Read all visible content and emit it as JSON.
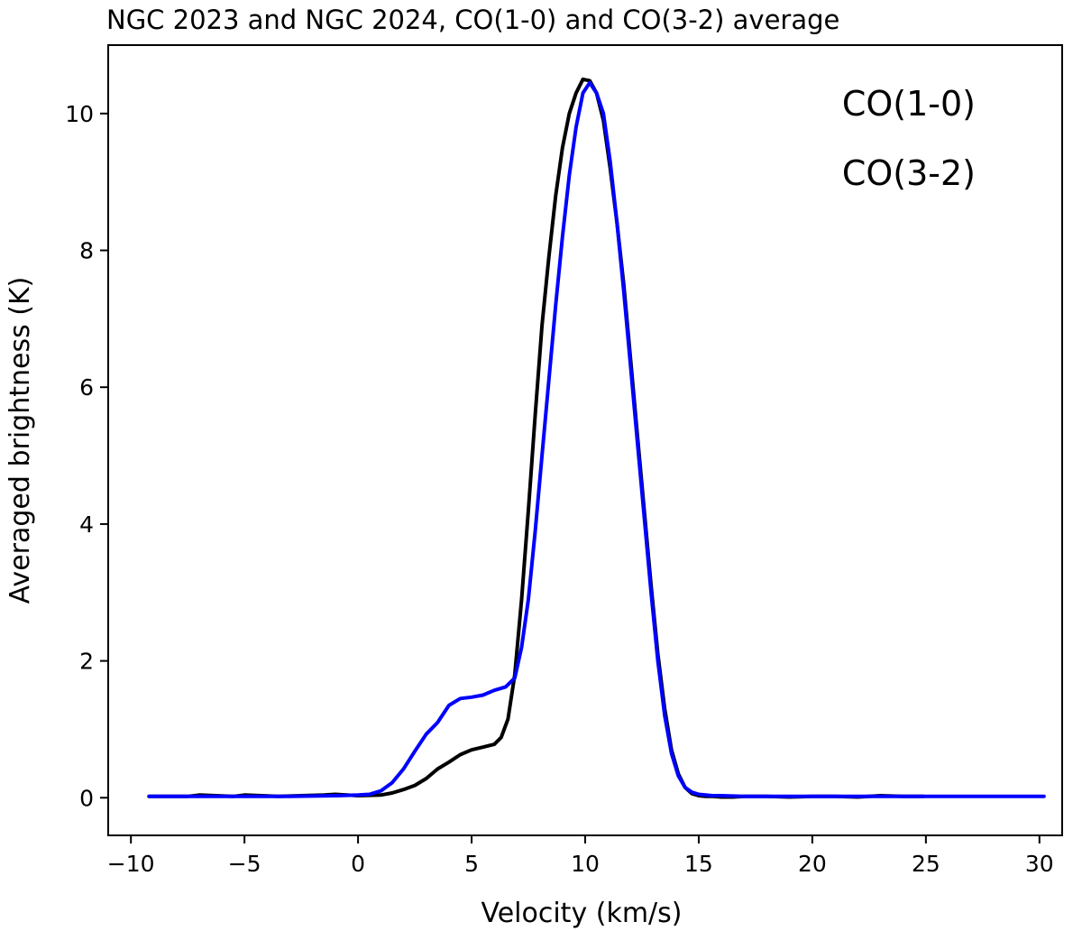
{
  "chart_data": {
    "type": "line",
    "title": "NGC 2023 and NGC 2024, CO(1-0) and CO(3-2) average",
    "xlabel": "Velocity (km/s)",
    "ylabel": "Averaged brightness (K)",
    "xlim": [
      -11,
      31
    ],
    "ylim": [
      -0.55,
      11.0
    ],
    "xticks": [
      -10,
      -5,
      0,
      5,
      10,
      15,
      20,
      25,
      30
    ],
    "xtick_labels": [
      "−10",
      "−5",
      "0",
      "5",
      "10",
      "15",
      "20",
      "25",
      "30"
    ],
    "yticks": [
      0,
      2,
      4,
      6,
      8,
      10
    ],
    "ytick_labels": [
      "0",
      "2",
      "4",
      "6",
      "8",
      "10"
    ],
    "grid": false,
    "legend_position": "top-right",
    "series": [
      {
        "name": "CO(3-2)",
        "color": "#000000",
        "x": [
          -9.2,
          -7.5,
          -7.0,
          -5.5,
          -5.0,
          -3.5,
          -2.5,
          -1.5,
          -1.0,
          0.0,
          1.0,
          1.5,
          2.0,
          2.5,
          3.0,
          3.5,
          4.0,
          4.5,
          5.0,
          5.5,
          6.0,
          6.3,
          6.6,
          6.9,
          7.2,
          7.5,
          7.8,
          8.1,
          8.4,
          8.7,
          9.0,
          9.3,
          9.6,
          9.9,
          10.2,
          10.5,
          10.8,
          11.1,
          11.4,
          11.7,
          12.0,
          12.3,
          12.6,
          12.9,
          13.2,
          13.5,
          13.8,
          14.1,
          14.4,
          14.7,
          15.0,
          15.3,
          15.6,
          16.0,
          16.5,
          17.0,
          18.0,
          19.0,
          20.0,
          21.0,
          22.0,
          23.0,
          24.0,
          24.9
        ],
        "y": [
          0.02,
          0.02,
          0.04,
          0.02,
          0.04,
          0.02,
          0.03,
          0.04,
          0.05,
          0.03,
          0.04,
          0.07,
          0.12,
          0.18,
          0.28,
          0.42,
          0.52,
          0.63,
          0.7,
          0.74,
          0.78,
          0.88,
          1.15,
          1.8,
          2.9,
          4.2,
          5.6,
          6.9,
          7.9,
          8.8,
          9.5,
          10.0,
          10.3,
          10.5,
          10.48,
          10.3,
          9.9,
          9.2,
          8.4,
          7.5,
          6.4,
          5.3,
          4.2,
          3.1,
          2.1,
          1.3,
          0.7,
          0.35,
          0.15,
          0.06,
          0.03,
          0.02,
          0.02,
          0.01,
          0.01,
          0.02,
          0.02,
          0.01,
          0.02,
          0.02,
          0.01,
          0.03,
          0.02,
          0.02
        ]
      },
      {
        "name": "CO(1-0)",
        "color": "#0000ff",
        "x": [
          -9.2,
          -7.0,
          -5.0,
          -3.0,
          -1.0,
          0.0,
          0.5,
          1.0,
          1.5,
          2.0,
          2.5,
          3.0,
          3.5,
          4.0,
          4.5,
          5.0,
          5.5,
          6.0,
          6.5,
          6.9,
          7.2,
          7.5,
          7.8,
          8.1,
          8.4,
          8.7,
          9.0,
          9.3,
          9.6,
          9.9,
          10.2,
          10.5,
          10.8,
          11.1,
          11.4,
          11.7,
          12.0,
          12.3,
          12.6,
          12.9,
          13.2,
          13.5,
          13.8,
          14.1,
          14.4,
          14.7,
          15.0,
          15.3,
          15.6,
          16.0,
          17.0,
          18.0,
          20.0,
          22.0,
          24.0,
          26.0,
          28.0,
          30.2
        ],
        "y": [
          0.02,
          0.02,
          0.02,
          0.02,
          0.03,
          0.04,
          0.05,
          0.1,
          0.22,
          0.42,
          0.68,
          0.93,
          1.1,
          1.35,
          1.45,
          1.47,
          1.5,
          1.57,
          1.62,
          1.75,
          2.2,
          2.9,
          3.9,
          5.0,
          6.1,
          7.2,
          8.2,
          9.1,
          9.8,
          10.3,
          10.45,
          10.3,
          10.0,
          9.3,
          8.4,
          7.4,
          6.3,
          5.2,
          4.1,
          3.0,
          2.0,
          1.2,
          0.65,
          0.32,
          0.15,
          0.08,
          0.05,
          0.04,
          0.03,
          0.03,
          0.02,
          0.02,
          0.02,
          0.02,
          0.02,
          0.02,
          0.02,
          0.02
        ]
      }
    ],
    "legend": [
      {
        "label": "CO(1-0)",
        "color": "#0000ff"
      },
      {
        "label": "CO(3-2)",
        "color": "#000000"
      }
    ]
  }
}
